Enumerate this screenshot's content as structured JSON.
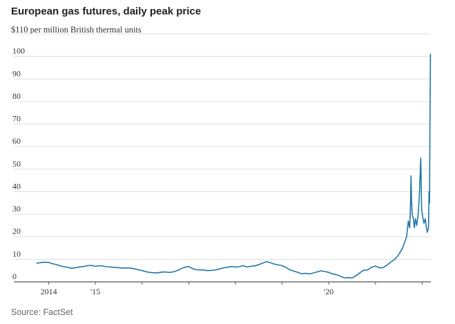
{
  "chart_data": {
    "type": "line",
    "title": "European gas futures, daily peak price",
    "subtitle": "$110 per million British thermal units",
    "source": "Source: FactSet",
    "ylim": [
      0,
      110
    ],
    "xlim": [
      "2013-09-01",
      "2022-03-10"
    ],
    "yticks": [
      {
        "value": 0,
        "label": "0"
      },
      {
        "value": 10,
        "label": "10"
      },
      {
        "value": 20,
        "label": "20"
      },
      {
        "value": 30,
        "label": "30"
      },
      {
        "value": 40,
        "label": "40"
      },
      {
        "value": 50,
        "label": "50"
      },
      {
        "value": 60,
        "label": "60"
      },
      {
        "value": 70,
        "label": "70"
      },
      {
        "value": 80,
        "label": "80"
      },
      {
        "value": 90,
        "label": "90"
      },
      {
        "value": 100,
        "label": "100"
      },
      {
        "value": 110,
        "label": ""
      }
    ],
    "xticks": [
      {
        "date": "2014-01-01",
        "label": "2014"
      },
      {
        "date": "2015-01-01",
        "label": "'15"
      },
      {
        "date": "2016-01-01",
        "label": ""
      },
      {
        "date": "2017-01-01",
        "label": ""
      },
      {
        "date": "2018-01-01",
        "label": ""
      },
      {
        "date": "2019-01-01",
        "label": ""
      },
      {
        "date": "2020-01-01",
        "label": "'20"
      },
      {
        "date": "2021-01-01",
        "label": ""
      },
      {
        "date": "2022-01-01",
        "label": ""
      }
    ],
    "grid": true,
    "colors": {
      "line": "#1f77a8",
      "grid": "#dddddd",
      "axis": "#555555"
    },
    "series": [
      {
        "name": "",
        "points": [
          [
            "2013-10-01",
            8.2
          ],
          [
            "2013-11-01",
            8.6
          ],
          [
            "2013-12-01",
            8.7
          ],
          [
            "2014-01-01",
            8.6
          ],
          [
            "2014-02-01",
            8.0
          ],
          [
            "2014-03-01",
            7.7
          ],
          [
            "2014-04-01",
            7.1
          ],
          [
            "2014-05-01",
            6.7
          ],
          [
            "2014-06-01",
            6.4
          ],
          [
            "2014-07-01",
            6.0
          ],
          [
            "2014-08-01",
            6.3
          ],
          [
            "2014-09-01",
            6.6
          ],
          [
            "2014-10-01",
            6.8
          ],
          [
            "2014-11-01",
            7.2
          ],
          [
            "2014-12-01",
            7.3
          ],
          [
            "2015-01-01",
            6.9
          ],
          [
            "2015-02-01",
            7.2
          ],
          [
            "2015-03-01",
            7.0
          ],
          [
            "2015-04-01",
            6.7
          ],
          [
            "2015-05-01",
            6.6
          ],
          [
            "2015-06-01",
            6.4
          ],
          [
            "2015-07-01",
            6.3
          ],
          [
            "2015-08-01",
            6.1
          ],
          [
            "2015-09-01",
            6.2
          ],
          [
            "2015-10-01",
            6.1
          ],
          [
            "2015-11-01",
            5.8
          ],
          [
            "2015-12-01",
            5.4
          ],
          [
            "2016-01-01",
            5.0
          ],
          [
            "2016-02-01",
            4.5
          ],
          [
            "2016-03-01",
            4.2
          ],
          [
            "2016-04-01",
            4.0
          ],
          [
            "2016-05-01",
            4.0
          ],
          [
            "2016-06-01",
            4.3
          ],
          [
            "2016-07-01",
            4.4
          ],
          [
            "2016-08-01",
            4.2
          ],
          [
            "2016-09-01",
            4.4
          ],
          [
            "2016-10-01",
            5.0
          ],
          [
            "2016-11-01",
            5.8
          ],
          [
            "2016-12-01",
            6.5
          ],
          [
            "2017-01-01",
            6.8
          ],
          [
            "2017-02-01",
            5.8
          ],
          [
            "2017-03-01",
            5.4
          ],
          [
            "2017-04-01",
            5.3
          ],
          [
            "2017-05-01",
            5.2
          ],
          [
            "2017-06-01",
            5.0
          ],
          [
            "2017-07-01",
            5.1
          ],
          [
            "2017-08-01",
            5.3
          ],
          [
            "2017-09-01",
            5.8
          ],
          [
            "2017-10-01",
            6.2
          ],
          [
            "2017-11-01",
            6.5
          ],
          [
            "2017-12-01",
            6.8
          ],
          [
            "2018-01-01",
            6.6
          ],
          [
            "2018-02-01",
            6.7
          ],
          [
            "2018-03-01",
            7.2
          ],
          [
            "2018-04-01",
            6.6
          ],
          [
            "2018-05-01",
            6.9
          ],
          [
            "2018-06-01",
            7.1
          ],
          [
            "2018-07-01",
            7.6
          ],
          [
            "2018-08-01",
            8.3
          ],
          [
            "2018-09-01",
            9.0
          ],
          [
            "2018-10-01",
            8.5
          ],
          [
            "2018-11-01",
            7.9
          ],
          [
            "2018-12-01",
            7.5
          ],
          [
            "2019-01-01",
            7.2
          ],
          [
            "2019-02-01",
            6.4
          ],
          [
            "2019-03-01",
            5.4
          ],
          [
            "2019-04-01",
            4.8
          ],
          [
            "2019-05-01",
            4.3
          ],
          [
            "2019-06-01",
            3.6
          ],
          [
            "2019-07-01",
            3.8
          ],
          [
            "2019-08-01",
            3.5
          ],
          [
            "2019-09-01",
            3.9
          ],
          [
            "2019-10-01",
            4.4
          ],
          [
            "2019-11-01",
            4.9
          ],
          [
            "2019-12-01",
            4.6
          ],
          [
            "2020-01-01",
            4.2
          ],
          [
            "2020-02-01",
            3.5
          ],
          [
            "2020-03-01",
            3.2
          ],
          [
            "2020-04-01",
            2.5
          ],
          [
            "2020-05-01",
            1.8
          ],
          [
            "2020-06-01",
            1.9
          ],
          [
            "2020-07-01",
            1.7
          ],
          [
            "2020-08-01",
            2.7
          ],
          [
            "2020-09-01",
            4.0
          ],
          [
            "2020-10-01",
            5.2
          ],
          [
            "2020-11-01",
            5.3
          ],
          [
            "2020-12-01",
            6.5
          ],
          [
            "2021-01-01",
            7.0
          ],
          [
            "2021-02-01",
            6.2
          ],
          [
            "2021-03-01",
            6.3
          ],
          [
            "2021-04-01",
            7.4
          ],
          [
            "2021-05-01",
            8.8
          ],
          [
            "2021-06-01",
            10.0
          ],
          [
            "2021-07-01",
            12.0
          ],
          [
            "2021-08-01",
            15.0
          ],
          [
            "2021-08-20",
            18.0
          ],
          [
            "2021-09-01",
            20.0
          ],
          [
            "2021-09-15",
            27.0
          ],
          [
            "2021-09-25",
            24.0
          ],
          [
            "2021-10-01",
            32.0
          ],
          [
            "2021-10-06",
            47.0
          ],
          [
            "2021-10-10",
            36.0
          ],
          [
            "2021-10-15",
            30.0
          ],
          [
            "2021-10-25",
            28.0
          ],
          [
            "2021-11-01",
            24.0
          ],
          [
            "2021-11-10",
            28.0
          ],
          [
            "2021-11-20",
            25.0
          ],
          [
            "2021-12-01",
            30.0
          ],
          [
            "2021-12-10",
            38.0
          ],
          [
            "2021-12-21",
            55.0
          ],
          [
            "2021-12-28",
            32.0
          ],
          [
            "2022-01-05",
            29.0
          ],
          [
            "2022-01-15",
            26.0
          ],
          [
            "2022-01-25",
            28.0
          ],
          [
            "2022-02-01",
            25.0
          ],
          [
            "2022-02-10",
            22.0
          ],
          [
            "2022-02-20",
            24.0
          ],
          [
            "2022-02-24",
            40.0
          ],
          [
            "2022-02-28",
            35.0
          ],
          [
            "2022-03-02",
            60.0
          ],
          [
            "2022-03-04",
            78.0
          ],
          [
            "2022-03-07",
            101.0
          ]
        ]
      }
    ]
  }
}
